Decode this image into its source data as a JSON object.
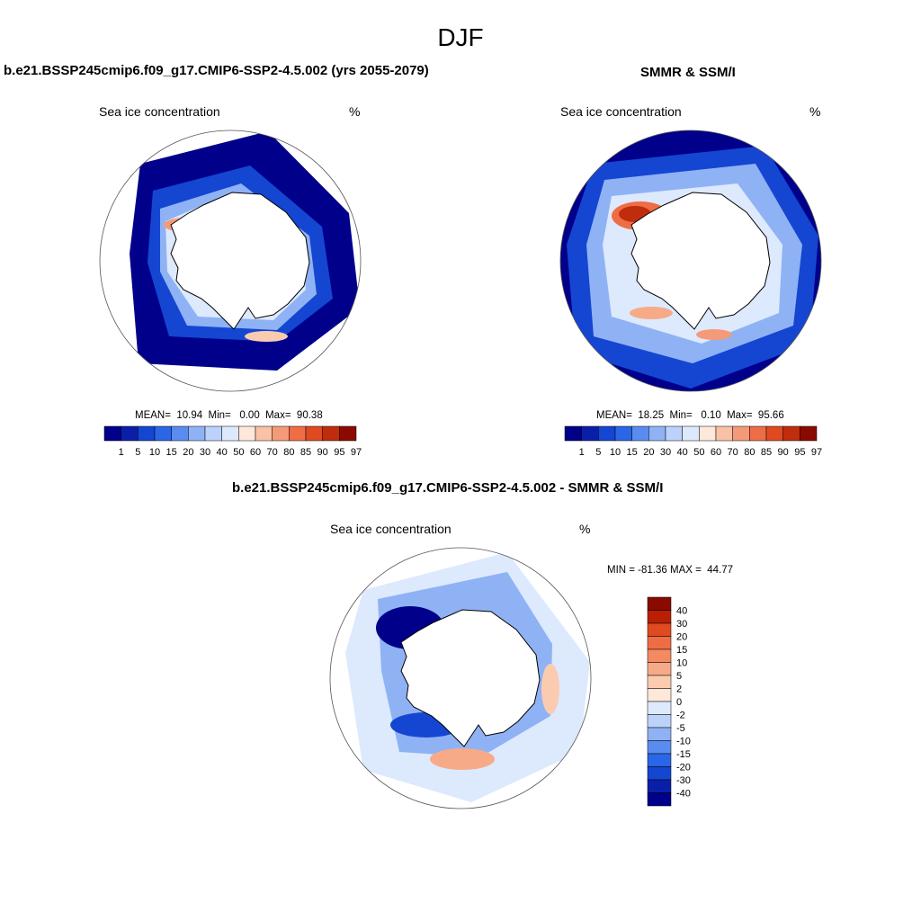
{
  "main_title": "DJF",
  "panels": [
    {
      "title": "b.e21.BSSP245cmip6.f09_g17.CMIP6-SSP2-4.5.002 (yrs 2055-2079)",
      "left_label": "Sea ice concentration",
      "right_label": "%",
      "stats": "MEAN=  10.94  Min=   0.00  Max=  90.38"
    },
    {
      "title": "SMMR & SSM/I",
      "left_label": "Sea ice concentration",
      "right_label": "%",
      "stats": "MEAN=  18.25  Min=   0.10  Max=  95.66"
    },
    {
      "title": "b.e21.BSSP245cmip6.f09_g17.CMIP6-SSP2-4.5.002 - SMMR & SSM/I",
      "left_label": "Sea ice concentration",
      "right_label": "%",
      "stats": "MIN = -81.36 MAX =  44.77"
    }
  ],
  "conc_colorbar": {
    "labels": [
      "1",
      "5",
      "10",
      "15",
      "20",
      "30",
      "40",
      "50",
      "60",
      "70",
      "80",
      "85",
      "90",
      "95",
      "97"
    ],
    "colors": [
      "#00008b",
      "#0a1fa8",
      "#1446d2",
      "#2a66e6",
      "#5a8cf0",
      "#8fb2f5",
      "#bcd2fa",
      "#dde9fd",
      "#fde8da",
      "#f9c1a6",
      "#f49a78",
      "#ef6d45",
      "#e04a20",
      "#c02d0c",
      "#8b0a00"
    ]
  },
  "diff_colorbar": {
    "labels": [
      "40",
      "30",
      "20",
      "15",
      "10",
      "5",
      "2",
      "0",
      "-2",
      "-5",
      "-10",
      "-15",
      "-20",
      "-30",
      "-40"
    ],
    "colors": [
      "#8b0a00",
      "#b81f05",
      "#e04a20",
      "#ef6d45",
      "#f48a62",
      "#f7aa88",
      "#fbcbb0",
      "#fde8da",
      "#dde9fd",
      "#bcd2fa",
      "#8fb2f5",
      "#5a8cf0",
      "#2a66e6",
      "#1446d2",
      "#0a1fa8",
      "#00008b"
    ]
  }
}
